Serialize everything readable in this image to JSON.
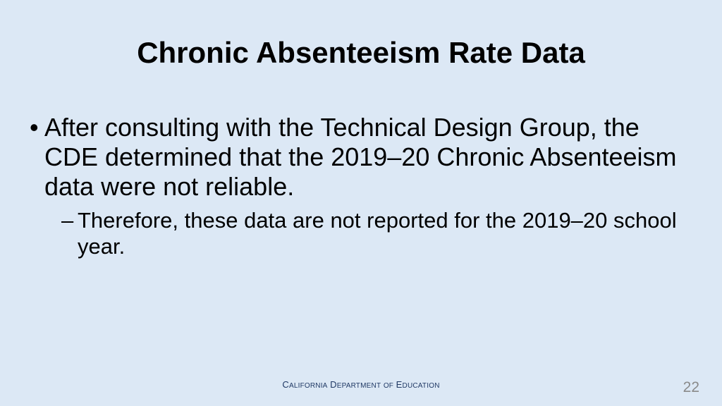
{
  "slide": {
    "title": "Chronic Absenteeism Rate Data",
    "bullets": [
      {
        "marker": "•",
        "text": "After consulting with the Technical Design Group, the CDE determined that the 2019–20 Chronic Absenteeism data were not reliable.",
        "sub_bullets": [
          {
            "marker": "–",
            "text": "Therefore, these data are not reported for the 2019–20 school year."
          }
        ]
      }
    ],
    "footer": {
      "words": [
        {
          "lead": "C",
          "rest": "alifornia"
        },
        {
          "lead": "D",
          "rest": "epartment"
        },
        {
          "lead": "",
          "rest": "of"
        },
        {
          "lead": "E",
          "rest": "ducation"
        }
      ]
    },
    "page_number": "22"
  }
}
